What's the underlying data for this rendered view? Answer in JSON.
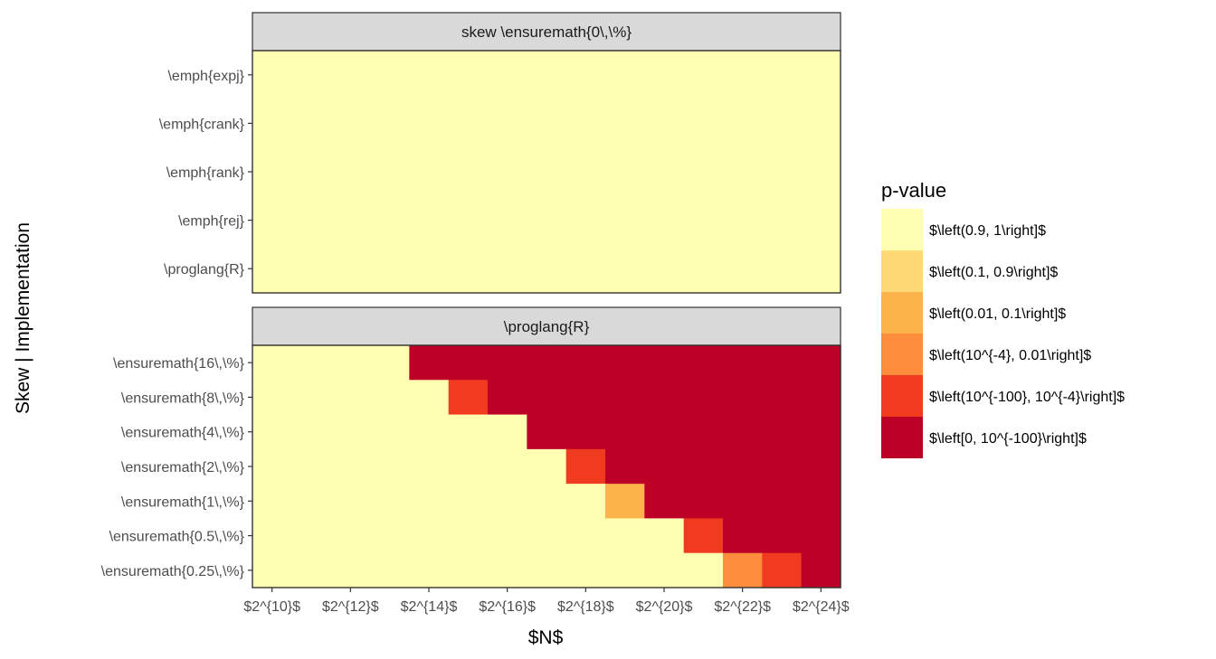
{
  "chart_data": {
    "type": "heatmap",
    "xlabel": "$N$",
    "ylabel": "Skew | Implementation",
    "x_ticks": [
      "$2^{10}$",
      "$2^{12}$",
      "$2^{14}$",
      "$2^{16}$",
      "$2^{18}$",
      "$2^{20}$",
      "$2^{22}$",
      "$2^{24}$"
    ],
    "x_values": [
      10,
      11,
      12,
      13,
      14,
      15,
      16,
      17,
      18,
      19,
      20,
      21,
      22,
      23,
      24
    ],
    "legend": {
      "title": "p-value",
      "placement": "right",
      "entries": [
        {
          "label": "$\\left(0.9, 1\\right]$",
          "color": "#FFFFB2"
        },
        {
          "label": "$\\left(0.1, 0.9\\right]$",
          "color": "#FED976"
        },
        {
          "label": "$\\left(0.01, 0.1\\right]$",
          "color": "#FEB24C"
        },
        {
          "label": "$\\left(10^{-4}, 0.01\\right]$",
          "color": "#FD8D3C"
        },
        {
          "label": "$\\left(10^{-100}, 10^{-4}\\right]$",
          "color": "#F03B20"
        },
        {
          "label": "$\\left[0, 10^{-100}\\right]$",
          "color": "#BD0026"
        }
      ]
    },
    "panels": [
      {
        "strip": "skew \\ensuremath{0\\,\\%}",
        "rows": [
          "\\emph{expj}",
          "\\emph{crank}",
          "\\emph{rank}",
          "\\emph{rej}",
          "\\proglang{R}"
        ],
        "values": [
          [
            0,
            0,
            0,
            0,
            0,
            0,
            0,
            0,
            0,
            0,
            0,
            0,
            0,
            0,
            0
          ],
          [
            0,
            0,
            0,
            0,
            0,
            0,
            0,
            0,
            0,
            0,
            0,
            0,
            0,
            0,
            0
          ],
          [
            0,
            0,
            0,
            0,
            0,
            0,
            0,
            0,
            0,
            0,
            0,
            0,
            0,
            0,
            0
          ],
          [
            0,
            0,
            0,
            0,
            0,
            0,
            0,
            0,
            0,
            0,
            0,
            0,
            0,
            0,
            0
          ],
          [
            0,
            0,
            0,
            0,
            0,
            0,
            0,
            0,
            0,
            0,
            0,
            0,
            0,
            0,
            0
          ]
        ]
      },
      {
        "strip": "\\proglang{R}",
        "rows": [
          "\\ensuremath{16\\,\\%}",
          "\\ensuremath{8\\,\\%}",
          "\\ensuremath{4\\,\\%}",
          "\\ensuremath{2\\,\\%}",
          "\\ensuremath{1\\,\\%}",
          "\\ensuremath{0.5\\,\\%}",
          "\\ensuremath{0.25\\,\\%}"
        ],
        "values": [
          [
            0,
            0,
            0,
            0,
            5,
            5,
            5,
            5,
            5,
            5,
            5,
            5,
            5,
            5,
            5
          ],
          [
            0,
            0,
            0,
            0,
            0,
            4,
            5,
            5,
            5,
            5,
            5,
            5,
            5,
            5,
            5
          ],
          [
            0,
            0,
            0,
            0,
            0,
            0,
            0,
            5,
            5,
            5,
            5,
            5,
            5,
            5,
            5
          ],
          [
            0,
            0,
            0,
            0,
            0,
            0,
            0,
            0,
            4,
            5,
            5,
            5,
            5,
            5,
            5
          ],
          [
            0,
            0,
            0,
            0,
            0,
            0,
            0,
            0,
            0,
            2,
            5,
            5,
            5,
            5,
            5
          ],
          [
            0,
            0,
            0,
            0,
            0,
            0,
            0,
            0,
            0,
            0,
            0,
            4,
            5,
            5,
            5
          ],
          [
            0,
            0,
            0,
            0,
            0,
            0,
            0,
            0,
            0,
            0,
            0,
            0,
            3,
            4,
            5
          ]
        ]
      }
    ]
  }
}
